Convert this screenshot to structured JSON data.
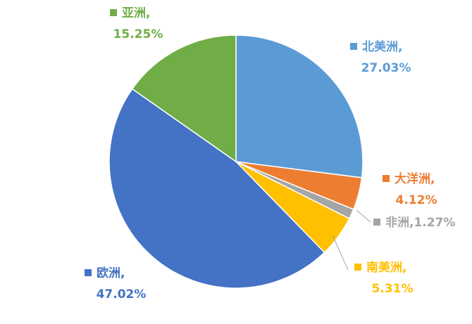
{
  "chart_data": {
    "type": "pie",
    "title": "",
    "start_angle_deg": 0,
    "direction": "clockwise",
    "slices": [
      {
        "name": "北美洲",
        "value": 27.03,
        "value_label": "27.03%",
        "color": "#5B9BD5"
      },
      {
        "name": "大洋洲",
        "value": 4.12,
        "value_label": "4.12%",
        "color": "#ED7D31"
      },
      {
        "name": "非洲",
        "value": 1.27,
        "value_label": "1.27%",
        "color": "#A5A5A5"
      },
      {
        "name": "南美洲",
        "value": 5.31,
        "value_label": "5.31%",
        "color": "#FFC000"
      },
      {
        "name": "欧洲",
        "value": 47.02,
        "value_label": "47.02%",
        "color": "#4472C4"
      },
      {
        "name": "亚洲",
        "value": 15.25,
        "value_label": "15.25%",
        "color": "#70AD47"
      }
    ]
  }
}
